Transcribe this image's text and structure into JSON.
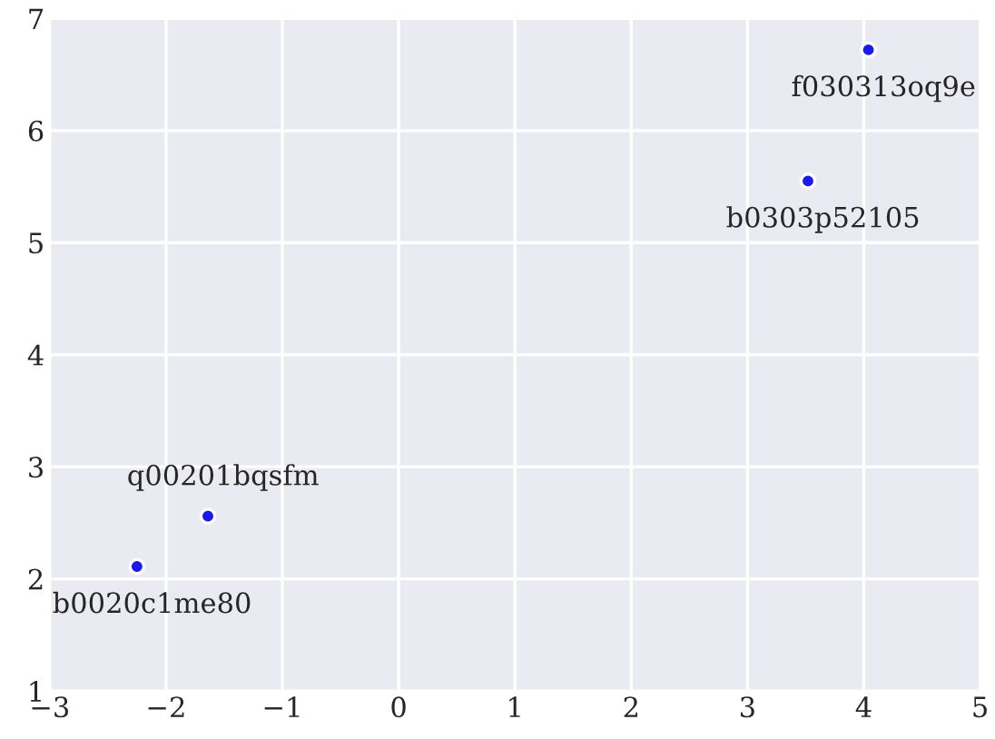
{
  "chart_data": {
    "type": "scatter",
    "series": [
      {
        "color": "#1a1aee",
        "x": [
          -2.25,
          -1.64,
          3.52,
          4.04
        ],
        "values": [
          2.11,
          2.56,
          5.55,
          6.72
        ]
      }
    ],
    "annotations": [
      {
        "text": "b0020c1me80",
        "x": -2.25,
        "y": 2.11
      },
      {
        "text": "q00201bqsfm",
        "x": -1.64,
        "y": 2.56
      },
      {
        "text": "b0303p52105",
        "x": 3.52,
        "y": 5.55
      },
      {
        "text": "f030313oq9e",
        "x": 4.04,
        "y": 6.72
      }
    ],
    "xlim": [
      -3,
      5
    ],
    "ylim": [
      1,
      7
    ],
    "xticks": [
      {
        "value": -3,
        "label": "−3"
      },
      {
        "value": -2,
        "label": "−2"
      },
      {
        "value": -1,
        "label": "−1"
      },
      0,
      1,
      2,
      3,
      4,
      5
    ],
    "yticks": [
      1,
      2,
      3,
      4,
      5,
      6,
      7
    ],
    "grid": true,
    "marker": "circle"
  }
}
